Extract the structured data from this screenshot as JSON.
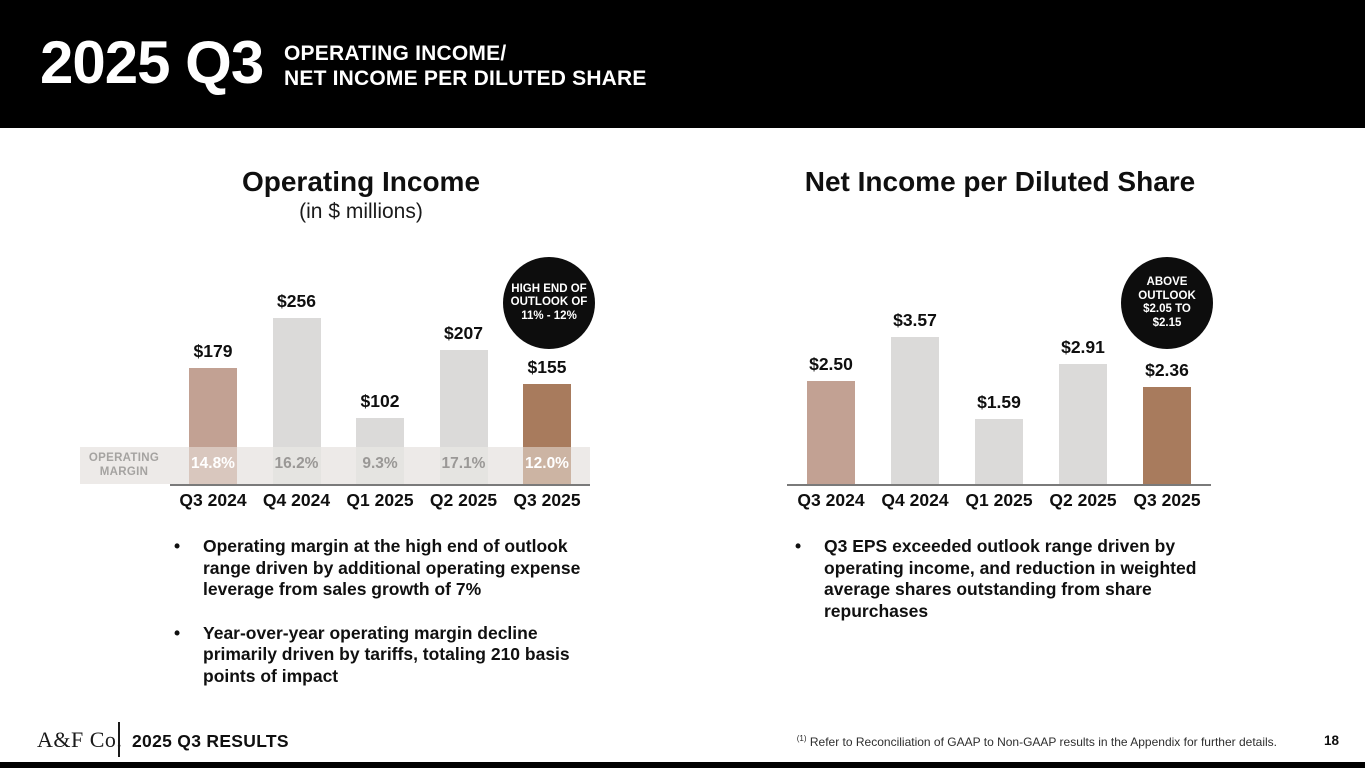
{
  "header": {
    "year_quarter": "2025 Q3",
    "subtitle_line1": "OPERATING INCOME/",
    "subtitle_line2": "NET INCOME PER DILUTED SHARE"
  },
  "chart_data": [
    {
      "type": "bar",
      "title": "Operating Income",
      "subtitle": "(in $ millions)",
      "unit": "USD millions",
      "categories": [
        "Q3 2024",
        "Q4 2024",
        "Q1 2025",
        "Q2 2025",
        "Q3 2025"
      ],
      "values": [
        179,
        256,
        102,
        207,
        155
      ],
      "value_labels": [
        "$179",
        "$256",
        "$102",
        "$207",
        "$155"
      ],
      "ylim": [
        0,
        280
      ],
      "grid": false,
      "bar_colors": [
        "#c2a193",
        "#dbdad9",
        "#dbdad9",
        "#dbdad9",
        "#a87b5d"
      ],
      "margin_row": {
        "label_lines": [
          "OPERATING",
          "MARGIN"
        ],
        "values": [
          "14.8%",
          "16.2%",
          "9.3%",
          "17.1%",
          "12.0%"
        ],
        "text_colors": [
          "#ffffff",
          "#9a9896",
          "#9a9896",
          "#9a9896",
          "#ffffff"
        ]
      },
      "badge_lines": [
        "HIGH END OF",
        "OUTLOOK OF",
        "11% - 12%"
      ]
    },
    {
      "type": "bar",
      "title": "Net Income per Diluted Share",
      "subtitle": "",
      "unit": "USD per diluted share",
      "categories": [
        "Q3 2024",
        "Q4 2024",
        "Q1 2025",
        "Q2 2025",
        "Q3 2025"
      ],
      "values": [
        2.5,
        3.57,
        1.59,
        2.91,
        2.36
      ],
      "value_labels": [
        "$2.50",
        "$3.57",
        "$1.59",
        "$2.91",
        "$2.36"
      ],
      "ylim": [
        0,
        4
      ],
      "grid": false,
      "bar_colors": [
        "#c2a193",
        "#dbdad9",
        "#dbdad9",
        "#dbdad9",
        "#a87b5d"
      ],
      "badge_lines": [
        "ABOVE",
        "OUTLOOK",
        "$2.05 TO",
        "$2.15"
      ]
    }
  ],
  "bullets": {
    "left": [
      "Operating margin at the high end of outlook range driven by additional operating expense leverage from sales growth of 7%",
      "Year-over-year operating margin decline primarily driven by tariffs, totaling 210 basis points of impact"
    ],
    "right": [
      "Q3 EPS exceeded outlook range driven by operating income, and reduction in weighted average shares outstanding from share repurchases"
    ]
  },
  "footer": {
    "logo": "A&F Co.",
    "results_label": "2025 Q3 RESULTS",
    "footnote_marker": "(1)",
    "footnote_text": " Refer to Reconciliation of GAAP to Non-GAAP results in the Appendix for further details.",
    "page_number": "18"
  },
  "colors": {
    "tan": "#c2a193",
    "gray": "#dbdad9",
    "brown": "#a87b5d",
    "margin_strip": "#edeae8",
    "badge_background": "#0d0d0d",
    "axis_line": "#7a7a7a"
  }
}
